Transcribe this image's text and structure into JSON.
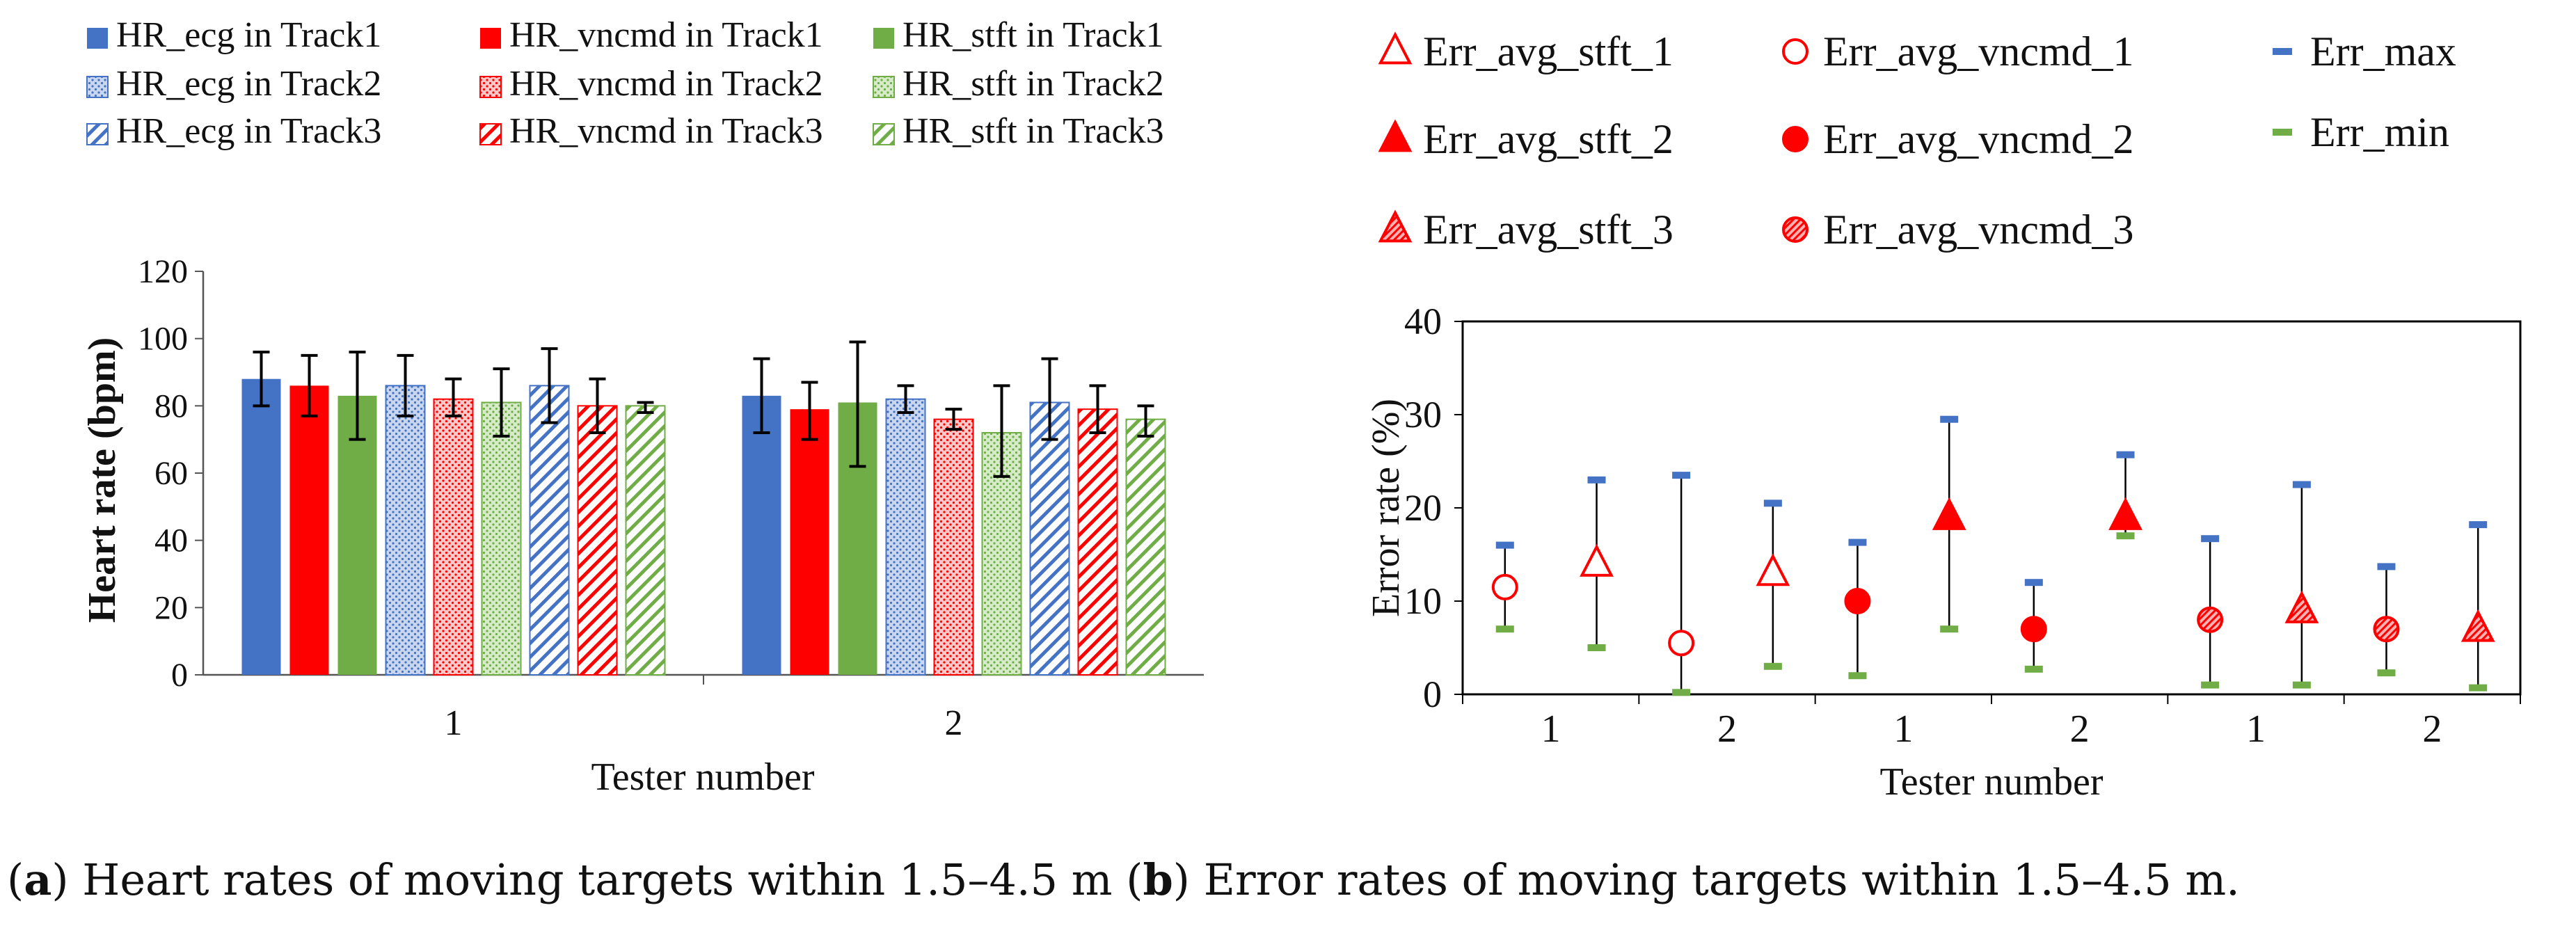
{
  "colors": {
    "blue": "#4472c4",
    "red": "#ff0000",
    "green": "#70ad47",
    "errmax": "#4472c4",
    "errmin": "#70ad47",
    "ebar": "#000000"
  },
  "captions": {
    "a_label": "a",
    "a_text": ") Heart rates of moving targets within 1.5–4.5 m (",
    "b_label": "b",
    "b_text": ") Error rates of moving targets within 1.5–4.5 m."
  },
  "chart_data": [
    {
      "type": "bar",
      "title": "",
      "xlabel": "Tester number",
      "ylabel": "Heart rate (bpm)",
      "ylim": [
        0,
        120
      ],
      "yticks": [
        0,
        20,
        40,
        60,
        80,
        100,
        120
      ],
      "categories": [
        "1",
        "2"
      ],
      "legend_position": "top",
      "series": [
        {
          "name": "HR_ecg in Track1",
          "color": "blue",
          "pattern": "solid",
          "values": [
            88,
            83
          ],
          "err_low": [
            80,
            72
          ],
          "err_high": [
            96,
            94
          ]
        },
        {
          "name": "HR_vncmd in Track1",
          "color": "red",
          "pattern": "solid",
          "values": [
            86,
            79
          ],
          "err_low": [
            77,
            70
          ],
          "err_high": [
            95,
            87
          ]
        },
        {
          "name": "HR_stft in Track1",
          "color": "green",
          "pattern": "solid",
          "values": [
            83,
            81
          ],
          "err_low": [
            70,
            62
          ],
          "err_high": [
            96,
            99
          ]
        },
        {
          "name": "HR_ecg in Track2",
          "color": "blue",
          "pattern": "dots",
          "values": [
            86,
            82
          ],
          "err_low": [
            77,
            78
          ],
          "err_high": [
            95,
            86
          ]
        },
        {
          "name": "HR_vncmd in Track2",
          "color": "red",
          "pattern": "dots",
          "values": [
            82,
            76
          ],
          "err_low": [
            77,
            73
          ],
          "err_high": [
            88,
            79
          ]
        },
        {
          "name": "HR_stft in Track2",
          "color": "green",
          "pattern": "dots",
          "values": [
            81,
            72
          ],
          "err_low": [
            71,
            59
          ],
          "err_high": [
            91,
            86
          ]
        },
        {
          "name": "HR_ecg in Track3",
          "color": "blue",
          "pattern": "hatch",
          "values": [
            86,
            81
          ],
          "err_low": [
            75,
            70
          ],
          "err_high": [
            97,
            94
          ]
        },
        {
          "name": "HR_vncmd in Track3",
          "color": "red",
          "pattern": "hatch",
          "values": [
            80,
            79
          ],
          "err_low": [
            72,
            72
          ],
          "err_high": [
            88,
            86
          ]
        },
        {
          "name": "HR_stft in Track3",
          "color": "green",
          "pattern": "hatch",
          "values": [
            80,
            76
          ],
          "err_low": [
            78,
            71
          ],
          "err_high": [
            81,
            80
          ]
        }
      ]
    },
    {
      "type": "scatter",
      "title": "",
      "xlabel": "Tester number",
      "ylabel": "Error rate (%)",
      "ylim": [
        0,
        40
      ],
      "yticks": [
        0,
        10,
        20,
        30,
        40
      ],
      "categories": [
        "1",
        "2",
        "1",
        "2",
        "1",
        "2"
      ],
      "legend_position": "top",
      "legend": [
        {
          "name": "Err_avg_stft_1",
          "marker": "triangle-open"
        },
        {
          "name": "Err_avg_vncmd_1",
          "marker": "circle-open"
        },
        {
          "name": "Err_max",
          "marker": "dash-max"
        },
        {
          "name": "Err_avg_stft_2",
          "marker": "triangle-filled"
        },
        {
          "name": "Err_avg_vncmd_2",
          "marker": "circle-filled"
        },
        {
          "name": "Err_min",
          "marker": "dash-min"
        },
        {
          "name": "Err_avg_stft_3",
          "marker": "triangle-hatched"
        },
        {
          "name": "Err_avg_vncmd_3",
          "marker": "circle-hatched"
        }
      ],
      "points": [
        {
          "group": 1,
          "side": "left",
          "marker": "circle-open",
          "avg": 11.5,
          "max": 16,
          "min": 7
        },
        {
          "group": 1,
          "side": "right",
          "marker": "triangle-open",
          "avg": 14,
          "max": 23,
          "min": 5
        },
        {
          "group": 2,
          "side": "left",
          "marker": "circle-open",
          "avg": 5.5,
          "max": 23.5,
          "min": 0.2
        },
        {
          "group": 2,
          "side": "right",
          "marker": "triangle-open",
          "avg": 13,
          "max": 20.5,
          "min": 3
        },
        {
          "group": 3,
          "side": "left",
          "marker": "circle-filled",
          "avg": 10,
          "max": 16.3,
          "min": 2
        },
        {
          "group": 3,
          "side": "right",
          "marker": "triangle-filled",
          "avg": 19,
          "max": 29.5,
          "min": 7
        },
        {
          "group": 4,
          "side": "left",
          "marker": "circle-filled",
          "avg": 7,
          "max": 12,
          "min": 2.7
        },
        {
          "group": 4,
          "side": "right",
          "marker": "triangle-filled",
          "avg": 19,
          "max": 25.7,
          "min": 17
        },
        {
          "group": 5,
          "side": "left",
          "marker": "circle-hatched",
          "avg": 8,
          "max": 16.7,
          "min": 1
        },
        {
          "group": 5,
          "side": "right",
          "marker": "triangle-hatched",
          "avg": 9,
          "max": 22.5,
          "min": 1
        },
        {
          "group": 6,
          "side": "left",
          "marker": "circle-hatched",
          "avg": 7,
          "max": 13.7,
          "min": 2.3
        },
        {
          "group": 6,
          "side": "right",
          "marker": "triangle-hatched",
          "avg": 7,
          "max": 18.2,
          "min": 0.7
        }
      ]
    }
  ]
}
